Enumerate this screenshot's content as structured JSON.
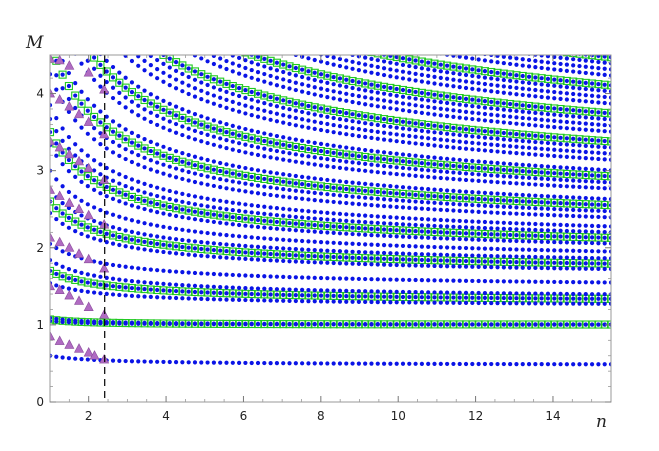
{
  "chart_data": {
    "type": "scatter",
    "title": "",
    "xlabel": "n",
    "ylabel": "M",
    "xlim": [
      1,
      15.5
    ],
    "ylim": [
      0,
      4.5
    ],
    "x_ticks": [
      2,
      4,
      6,
      8,
      10,
      12,
      14
    ],
    "y_ticks": [
      0,
      1,
      2,
      3,
      4
    ],
    "frame": true,
    "grid": false,
    "legend": "none",
    "reference_line": {
      "x": 2.414,
      "style": "dashed",
      "color": "#000000"
    },
    "colors": {
      "dots": "#0a14e6",
      "squares": "#21c921",
      "triangles": "#b06bc2",
      "triangle_edge": "#8a4c9c"
    },
    "series": [
      {
        "marker": "dot",
        "x_range": [
          1,
          15.5
        ],
        "n_points": 90,
        "note_values": "curves M(n) = asymptote + amplitude / n^exponent",
        "curves": [
          {
            "asymptote": 0.47,
            "amplitude": 0.13,
            "exponent": 0.7
          },
          {
            "asymptote": 1.0,
            "amplitude": 0.05,
            "exponent": 1
          },
          {
            "asymptote": 1.0,
            "amplitude": 0.09,
            "exponent": 1
          },
          {
            "asymptote": 1.21,
            "amplitude": 0.33,
            "exponent": 0.6
          },
          {
            "asymptote": 1.25,
            "amplitude": 0.45,
            "exponent": 0.6
          },
          {
            "asymptote": 1.29,
            "amplitude": 0.55,
            "exponent": 0.6
          },
          {
            "asymptote": 1.43,
            "amplitude": 0.62,
            "exponent": 0.6
          },
          {
            "asymptote": 1.55,
            "amplitude": 0.9,
            "exponent": 0.6
          },
          {
            "asymptote": 1.6,
            "amplitude": 1.0,
            "exponent": 0.6
          },
          {
            "asymptote": 1.65,
            "amplitude": 1.1,
            "exponent": 0.6
          },
          {
            "asymptote": 1.7,
            "amplitude": 1.3,
            "exponent": 0.6
          },
          {
            "asymptote": 1.75,
            "amplitude": 1.58,
            "exponent": 0.6
          },
          {
            "asymptote": 1.8,
            "amplitude": 1.7,
            "exponent": 0.6
          },
          {
            "asymptote": 1.85,
            "amplitude": 1.82,
            "exponent": 0.6
          },
          {
            "asymptote": 1.9,
            "amplitude": 1.95,
            "exponent": 0.6
          },
          {
            "asymptote": 1.95,
            "amplitude": 2.3,
            "exponent": 0.6
          },
          {
            "asymptote": 2.0,
            "amplitude": 2.45,
            "exponent": 0.6
          },
          {
            "asymptote": 2.05,
            "amplitude": 2.6,
            "exponent": 0.6
          },
          {
            "asymptote": 2.1,
            "amplitude": 2.75,
            "exponent": 0.6
          },
          {
            "asymptote": 2.15,
            "amplitude": 3.2,
            "exponent": 0.6
          },
          {
            "asymptote": 2.2,
            "amplitude": 3.35,
            "exponent": 0.6
          },
          {
            "asymptote": 2.25,
            "amplitude": 3.5,
            "exponent": 0.6
          },
          {
            "asymptote": 2.3,
            "amplitude": 3.65,
            "exponent": 0.6
          },
          {
            "asymptote": 2.35,
            "amplitude": 4.1,
            "exponent": 0.6
          },
          {
            "asymptote": 2.4,
            "amplitude": 4.25,
            "exponent": 0.6
          },
          {
            "asymptote": 2.45,
            "amplitude": 4.4,
            "exponent": 0.6
          },
          {
            "asymptote": 2.5,
            "amplitude": 4.55,
            "exponent": 0.6
          },
          {
            "asymptote": 2.55,
            "amplitude": 4.95,
            "exponent": 0.6
          },
          {
            "asymptote": 2.6,
            "amplitude": 5.1,
            "exponent": 0.6
          },
          {
            "asymptote": 2.65,
            "amplitude": 5.25,
            "exponent": 0.6
          },
          {
            "asymptote": 2.7,
            "amplitude": 5.4,
            "exponent": 0.6
          },
          {
            "asymptote": 2.75,
            "amplitude": 5.8,
            "exponent": 0.6
          },
          {
            "asymptote": 2.8,
            "amplitude": 5.95,
            "exponent": 0.6
          },
          {
            "asymptote": 2.85,
            "amplitude": 6.1,
            "exponent": 0.6
          },
          {
            "asymptote": 2.9,
            "amplitude": 6.25,
            "exponent": 0.6
          },
          {
            "asymptote": 2.95,
            "amplitude": 6.65,
            "exponent": 0.6
          },
          {
            "asymptote": 3.0,
            "amplitude": 6.8,
            "exponent": 0.6
          },
          {
            "asymptote": 3.05,
            "amplitude": 6.95,
            "exponent": 0.6
          },
          {
            "asymptote": 3.1,
            "amplitude": 7.1,
            "exponent": 0.6
          }
        ]
      },
      {
        "marker": "square",
        "x_range": [
          1,
          15.5
        ],
        "n_points": 90,
        "curves": [
          {
            "asymptote": 1.0,
            "amplitude": 0.07,
            "exponent": 1
          },
          {
            "asymptote": 1.25,
            "amplitude": 0.45,
            "exponent": 0.6
          },
          {
            "asymptote": 1.6,
            "amplitude": 1.0,
            "exponent": 0.6
          },
          {
            "asymptote": 1.8,
            "amplitude": 1.7,
            "exponent": 0.6
          },
          {
            "asymptote": 2.05,
            "amplitude": 2.6,
            "exponent": 0.6
          },
          {
            "asymptote": 2.25,
            "amplitude": 3.5,
            "exponent": 0.6
          },
          {
            "asymptote": 2.5,
            "amplitude": 4.55,
            "exponent": 0.6
          },
          {
            "asymptote": 2.7,
            "amplitude": 5.4,
            "exponent": 0.6
          },
          {
            "asymptote": 2.9,
            "amplitude": 6.25,
            "exponent": 0.6
          },
          {
            "asymptote": 3.1,
            "amplitude": 7.1,
            "exponent": 0.6
          }
        ]
      },
      {
        "marker": "triangle",
        "points": [
          [
            1.0,
            0.85
          ],
          [
            1.25,
            0.79
          ],
          [
            1.5,
            0.74
          ],
          [
            1.75,
            0.69
          ],
          [
            2.0,
            0.64
          ],
          [
            2.15,
            0.6
          ],
          [
            2.4,
            0.55
          ],
          [
            1.0,
            1.5
          ],
          [
            1.25,
            1.45
          ],
          [
            1.5,
            1.38
          ],
          [
            1.75,
            1.31
          ],
          [
            2.0,
            1.23
          ],
          [
            2.4,
            1.13
          ],
          [
            1.0,
            2.13
          ],
          [
            1.25,
            2.07
          ],
          [
            1.5,
            2.0
          ],
          [
            1.75,
            1.92
          ],
          [
            2.0,
            1.85
          ],
          [
            2.4,
            1.73
          ],
          [
            1.0,
            2.75
          ],
          [
            1.25,
            2.67
          ],
          [
            1.5,
            2.58
          ],
          [
            1.75,
            2.5
          ],
          [
            2.0,
            2.42
          ],
          [
            2.4,
            2.3
          ],
          [
            1.0,
            3.38
          ],
          [
            1.25,
            3.3
          ],
          [
            1.5,
            3.21
          ],
          [
            1.75,
            3.12
          ],
          [
            2.0,
            3.03
          ],
          [
            2.4,
            2.88
          ],
          [
            1.0,
            4.0
          ],
          [
            1.25,
            3.92
          ],
          [
            1.5,
            3.83
          ],
          [
            1.75,
            3.73
          ],
          [
            2.0,
            3.63
          ],
          [
            2.4,
            3.47
          ],
          [
            1.0,
            4.45
          ],
          [
            1.25,
            4.43
          ],
          [
            1.5,
            4.36
          ],
          [
            2.0,
            4.27
          ],
          [
            2.4,
            4.05
          ]
        ]
      }
    ]
  }
}
